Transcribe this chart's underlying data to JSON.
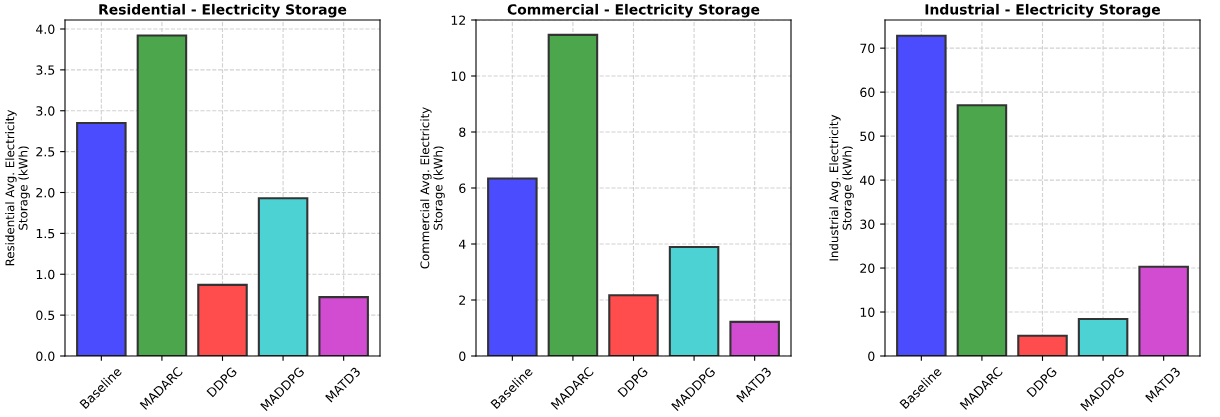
{
  "chart_data": [
    {
      "type": "bar",
      "title": "Residential - Electricity Storage",
      "ylabel": "Residential Avg. Electricity\nStorage (kWh)",
      "categories": [
        "Baseline",
        "MADARC",
        "DDPG",
        "MADDPG",
        "MATD3"
      ],
      "values": [
        2.85,
        3.92,
        0.87,
        1.93,
        0.72
      ],
      "colors": [
        "#4c4cff",
        "#4ca64c",
        "#ff4c4c",
        "#4cd2d2",
        "#d24cd2"
      ],
      "ylim": [
        0,
        4.11
      ],
      "yticks": [
        {
          "value": 0,
          "label": "0.0"
        },
        0.5,
        {
          "value": 1,
          "label": "1.0"
        },
        1.5,
        {
          "value": 2,
          "label": "2.0"
        },
        2.5,
        {
          "value": 3,
          "label": "3.0"
        },
        3.5,
        {
          "value": 4,
          "label": "4.0"
        }
      ],
      "grid": true
    },
    {
      "type": "bar",
      "title": "Commercial - Electricity Storage",
      "ylabel": "Commercial Avg. Electricity\nStorage (kWh)",
      "categories": [
        "Baseline",
        "MADARC",
        "DDPG",
        "MADDPG",
        "MATD3"
      ],
      "values": [
        6.34,
        11.47,
        2.17,
        3.89,
        1.22
      ],
      "colors": [
        "#4c4cff",
        "#4ca64c",
        "#ff4c4c",
        "#4cd2d2",
        "#d24cd2"
      ],
      "ylim": [
        0,
        12
      ],
      "yticks": [
        0,
        2,
        4,
        6,
        8,
        10,
        12
      ],
      "grid": true
    },
    {
      "type": "bar",
      "title": "Industrial - Electricity Storage",
      "ylabel": "Industrial Avg. Electricity\nStorage (kWh)",
      "categories": [
        "Baseline",
        "MADARC",
        "DDPG",
        "MADDPG",
        "MATD3"
      ],
      "values": [
        72.8,
        57.0,
        4.6,
        8.4,
        20.3
      ],
      "colors": [
        "#4c4cff",
        "#4ca64c",
        "#ff4c4c",
        "#4cd2d2",
        "#d24cd2"
      ],
      "ylim": [
        0,
        76.4
      ],
      "yticks": [
        0,
        10,
        20,
        30,
        40,
        50,
        60,
        70
      ],
      "grid": true
    }
  ]
}
